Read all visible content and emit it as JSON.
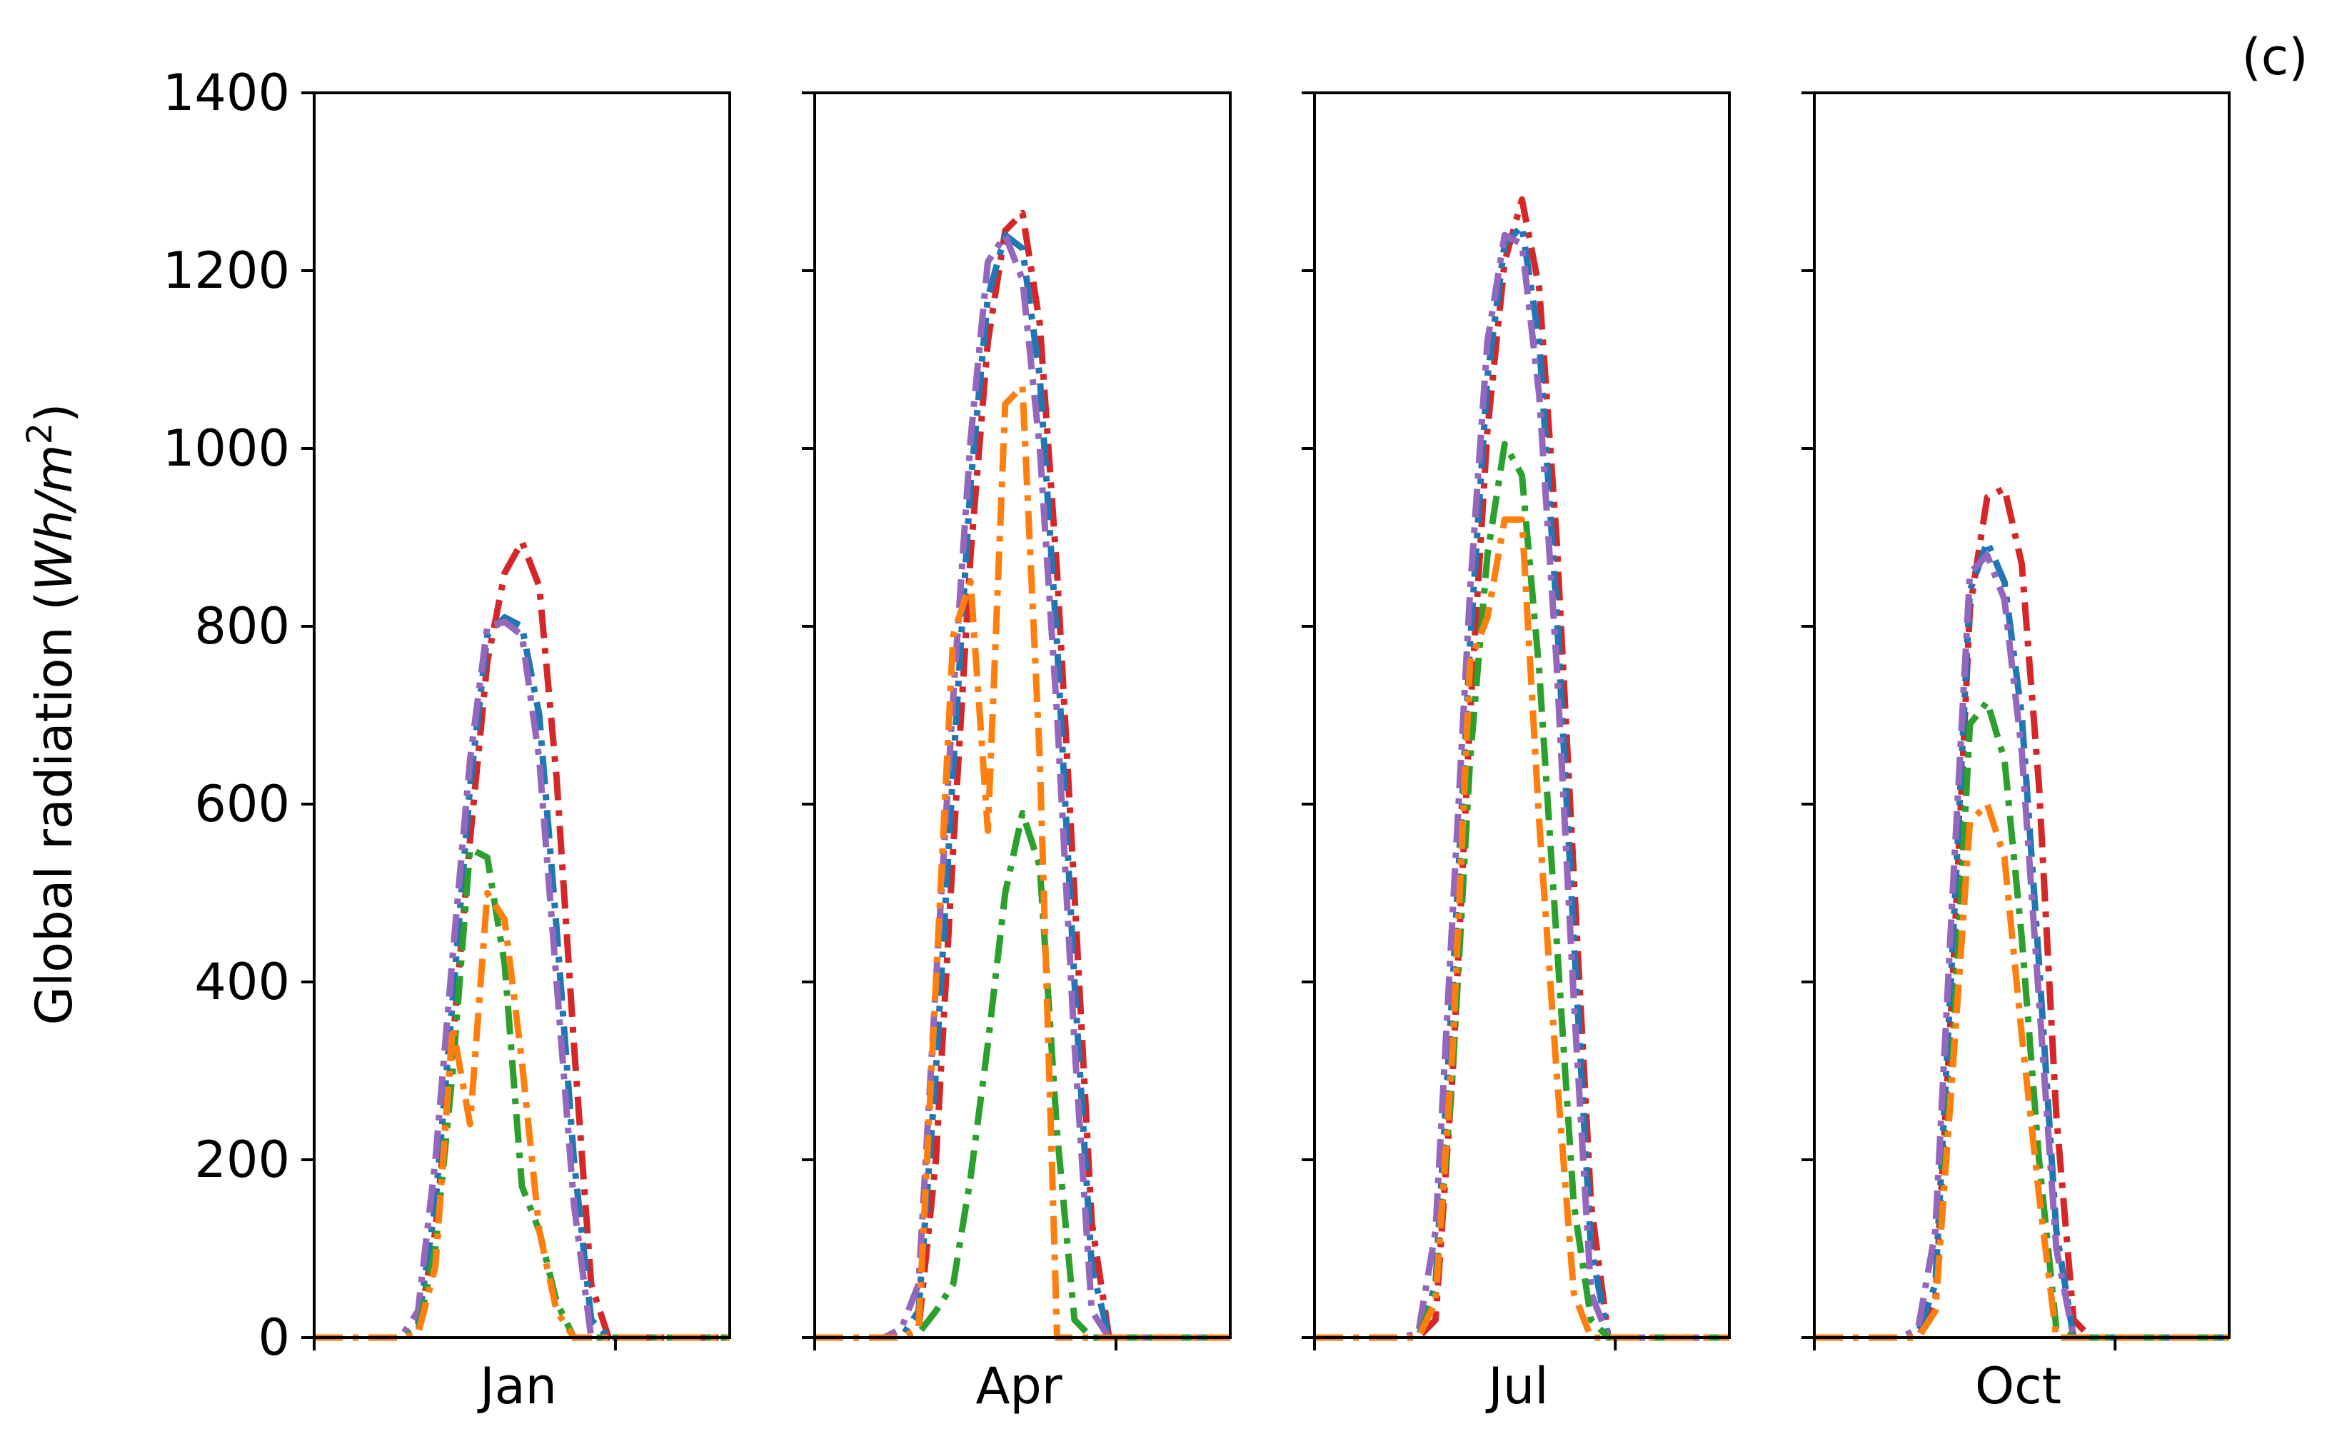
{
  "figure": {
    "panel_label": "(c)",
    "ylabel_prefix": "Global radiation (",
    "ylabel_unit_main": "Wh/m",
    "ylabel_unit_exp": "2",
    "ylabel_suffix": ")"
  },
  "chart_data": [
    {
      "type": "line",
      "title": "",
      "xlabel": "Jan",
      "ylabel": "Global radiation (Wh/m2)",
      "ylim": [
        0,
        1400
      ],
      "yticks": [
        0,
        200,
        400,
        600,
        800,
        1000,
        1200,
        1400
      ],
      "xlim": [
        0,
        24
      ],
      "grid": false,
      "x": [
        0,
        1,
        2,
        3,
        4,
        5,
        6,
        7,
        8,
        9,
        10,
        11,
        12,
        13,
        14,
        15,
        16,
        17,
        18,
        19,
        20,
        21,
        22,
        23,
        24
      ],
      "series": [
        {
          "color": "#d62728",
          "dash": "dashdot",
          "values": [
            0,
            0,
            0,
            0,
            0,
            0,
            5,
            120,
            330,
            560,
            760,
            860,
            895,
            845,
            630,
            330,
            60,
            0,
            0,
            0,
            0,
            0,
            0,
            0,
            0
          ]
        },
        {
          "color": "#1f77b4",
          "dash": "dashdot",
          "values": [
            0,
            0,
            0,
            0,
            0,
            0,
            15,
            150,
            380,
            620,
            790,
            810,
            800,
            700,
            460,
            200,
            20,
            0,
            0,
            0,
            0,
            0,
            0,
            0,
            0
          ]
        },
        {
          "color": "#9467bd",
          "dash": "dashdot",
          "values": [
            0,
            0,
            0,
            0,
            0,
            0,
            30,
            200,
            430,
            650,
            800,
            805,
            790,
            650,
            400,
            150,
            0,
            0,
            0,
            0,
            0,
            0,
            0,
            0,
            0
          ]
        },
        {
          "color": "#2ca02c",
          "dash": "dashdot",
          "values": [
            0,
            0,
            0,
            0,
            0,
            0,
            8,
            100,
            300,
            550,
            540,
            420,
            170,
            120,
            40,
            0,
            0,
            0,
            0,
            0,
            0,
            0,
            0,
            0,
            0
          ]
        },
        {
          "color": "#ff7f0e",
          "dash": "dashdot",
          "values": [
            0,
            0,
            0,
            0,
            0,
            0,
            4,
            80,
            350,
            240,
            500,
            470,
            310,
            120,
            30,
            0,
            0,
            0,
            0,
            0,
            0,
            0,
            0,
            0,
            0
          ]
        }
      ]
    },
    {
      "type": "line",
      "title": "",
      "xlabel": "Apr",
      "ylabel": "",
      "ylim": [
        0,
        1400
      ],
      "yticks": [
        0,
        200,
        400,
        600,
        800,
        1000,
        1200,
        1400
      ],
      "xlim": [
        0,
        24
      ],
      "grid": false,
      "x": [
        0,
        1,
        2,
        3,
        4,
        5,
        6,
        7,
        8,
        9,
        10,
        11,
        12,
        13,
        14,
        15,
        16,
        17,
        18,
        19,
        20,
        21,
        22,
        23,
        24
      ],
      "series": [
        {
          "color": "#d62728",
          "dash": "dashdot",
          "values": [
            0,
            0,
            0,
            0,
            0,
            0,
            10,
            200,
            550,
            880,
            1120,
            1245,
            1265,
            1140,
            860,
            500,
            130,
            0,
            0,
            0,
            0,
            0,
            0,
            0,
            0
          ]
        },
        {
          "color": "#1f77b4",
          "dash": "dashdot",
          "values": [
            0,
            0,
            0,
            0,
            0,
            0,
            30,
            300,
            640,
            960,
            1170,
            1240,
            1225,
            1080,
            780,
            400,
            80,
            0,
            0,
            0,
            0,
            0,
            0,
            0,
            0
          ]
        },
        {
          "color": "#9467bd",
          "dash": "dashdot",
          "values": [
            0,
            0,
            0,
            0,
            0,
            10,
            60,
            400,
            720,
            1010,
            1210,
            1240,
            1190,
            1000,
            700,
            330,
            30,
            0,
            0,
            0,
            0,
            0,
            0,
            0,
            0
          ]
        },
        {
          "color": "#2ca02c",
          "dash": "dashdot",
          "values": [
            0,
            0,
            0,
            0,
            0,
            0,
            5,
            30,
            60,
            180,
            330,
            500,
            590,
            530,
            230,
            20,
            0,
            0,
            0,
            0,
            0,
            0,
            0,
            0,
            0
          ]
        },
        {
          "color": "#ff7f0e",
          "dash": "dashdot",
          "values": [
            0,
            0,
            0,
            0,
            0,
            0,
            10,
            400,
            790,
            850,
            570,
            1050,
            1070,
            650,
            0,
            0,
            0,
            0,
            0,
            0,
            0,
            0,
            0,
            0,
            0
          ]
        }
      ]
    },
    {
      "type": "line",
      "title": "",
      "xlabel": "Jul",
      "ylabel": "",
      "ylim": [
        0,
        1400
      ],
      "yticks": [
        0,
        200,
        400,
        600,
        800,
        1000,
        1200,
        1400
      ],
      "xlim": [
        0,
        24
      ],
      "grid": false,
      "x": [
        0,
        1,
        2,
        3,
        4,
        5,
        6,
        7,
        8,
        9,
        10,
        11,
        12,
        13,
        14,
        15,
        16,
        17,
        18,
        19,
        20,
        21,
        22,
        23,
        24
      ],
      "series": [
        {
          "color": "#d62728",
          "dash": "dashdot",
          "values": [
            0,
            0,
            0,
            0,
            0,
            0,
            0,
            20,
            300,
            700,
            1020,
            1210,
            1280,
            1180,
            900,
            520,
            150,
            0,
            0,
            0,
            0,
            0,
            0,
            0,
            0
          ]
        },
        {
          "color": "#1f77b4",
          "dash": "dashdot",
          "values": [
            0,
            0,
            0,
            0,
            0,
            0,
            0,
            60,
            400,
            780,
            1080,
            1230,
            1250,
            1120,
            820,
            450,
            100,
            0,
            0,
            0,
            0,
            0,
            0,
            0,
            0
          ]
        },
        {
          "color": "#9467bd",
          "dash": "dashdot",
          "values": [
            0,
            0,
            0,
            0,
            0,
            0,
            5,
            120,
            480,
            840,
            1120,
            1240,
            1230,
            1060,
            760,
            380,
            50,
            0,
            0,
            0,
            0,
            0,
            0,
            0,
            0
          ]
        },
        {
          "color": "#2ca02c",
          "dash": "dashdot",
          "values": [
            0,
            0,
            0,
            0,
            0,
            0,
            0,
            50,
            300,
            650,
            880,
            1005,
            970,
            750,
            450,
            150,
            20,
            0,
            0,
            0,
            0,
            0,
            0,
            0,
            0
          ]
        },
        {
          "color": "#ff7f0e",
          "dash": "dashdot",
          "values": [
            0,
            0,
            0,
            0,
            0,
            0,
            0,
            40,
            330,
            760,
            810,
            920,
            920,
            580,
            300,
            50,
            0,
            0,
            0,
            0,
            0,
            0,
            0,
            0,
            0
          ]
        }
      ]
    },
    {
      "type": "line",
      "title": "",
      "xlabel": "Oct",
      "ylabel": "",
      "ylim": [
        0,
        1400
      ],
      "yticks": [
        0,
        200,
        400,
        600,
        800,
        1000,
        1200,
        1400
      ],
      "xlim": [
        0,
        24
      ],
      "grid": false,
      "x": [
        0,
        1,
        2,
        3,
        4,
        5,
        6,
        7,
        8,
        9,
        10,
        11,
        12,
        13,
        14,
        15,
        16,
        17,
        18,
        19,
        20,
        21,
        22,
        23,
        24
      ],
      "series": [
        {
          "color": "#d62728",
          "dash": "dashdot",
          "values": [
            0,
            0,
            0,
            0,
            0,
            0,
            0,
            40,
            400,
            820,
            945,
            955,
            870,
            620,
            250,
            20,
            0,
            0,
            0,
            0,
            0,
            0,
            0,
            0,
            0
          ]
        },
        {
          "color": "#1f77b4",
          "dash": "dashdot",
          "values": [
            0,
            0,
            0,
            0,
            0,
            0,
            5,
            60,
            440,
            840,
            895,
            850,
            700,
            420,
            120,
            0,
            0,
            0,
            0,
            0,
            0,
            0,
            0,
            0,
            0
          ]
        },
        {
          "color": "#9467bd",
          "dash": "dashdot",
          "values": [
            0,
            0,
            0,
            0,
            0,
            0,
            10,
            120,
            500,
            860,
            880,
            830,
            660,
            380,
            100,
            0,
            0,
            0,
            0,
            0,
            0,
            0,
            0,
            0,
            0
          ]
        },
        {
          "color": "#2ca02c",
          "dash": "dashdot",
          "values": [
            0,
            0,
            0,
            0,
            0,
            0,
            0,
            30,
            320,
            690,
            715,
            650,
            450,
            200,
            10,
            0,
            0,
            0,
            0,
            0,
            0,
            0,
            0,
            0,
            0
          ]
        },
        {
          "color": "#ff7f0e",
          "dash": "dashdot",
          "values": [
            0,
            0,
            0,
            0,
            0,
            0,
            0,
            30,
            300,
            580,
            600,
            540,
            340,
            160,
            0,
            0,
            0,
            0,
            0,
            0,
            0,
            0,
            0,
            0,
            0
          ]
        }
      ]
    }
  ]
}
